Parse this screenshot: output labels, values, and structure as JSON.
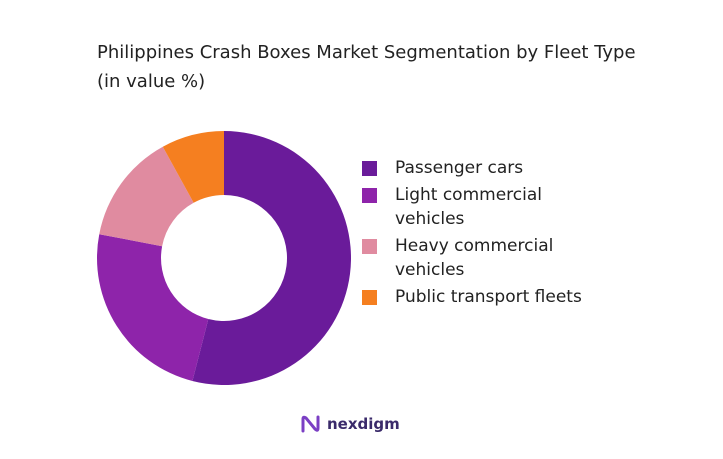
{
  "chart_data": {
    "type": "donut",
    "title": "Philippines Crash Boxes Market Segmentation by Fleet Type (in value %)",
    "categories": [
      "Passenger cars",
      "Light commercial vehicles",
      "Heavy commercial vehicles",
      "Public transport fleets"
    ],
    "values": [
      54,
      24,
      14,
      8
    ],
    "colors": [
      "#6a1b9a",
      "#8e24aa",
      "#e08ba0",
      "#f57f20"
    ],
    "legend": "right"
  },
  "brand": "nexdigm"
}
